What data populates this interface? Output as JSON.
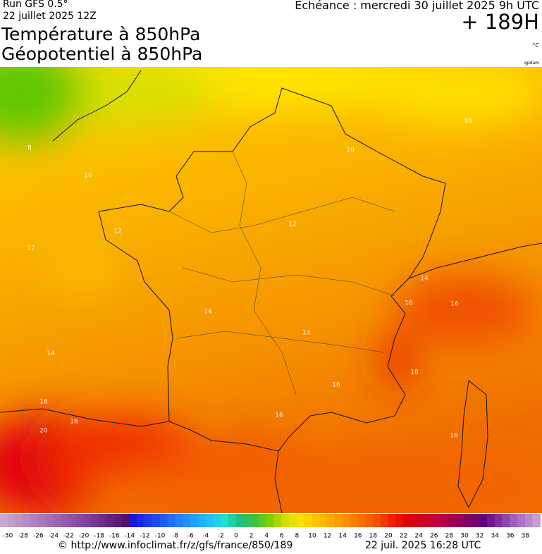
{
  "header": {
    "run": "Run GFS 0.5°",
    "run_date": "22 juillet 2025 12Z",
    "title_1": "Température à 850hPa",
    "title_2": "Géopotentiel à 850hPa",
    "valid": "Echéance : mercredi 30 juillet 2025 9h UTC",
    "lead": "+ 189H",
    "unit": "°C",
    "credit": "gpdam"
  },
  "map": {
    "contour_labels": [
      "8",
      "10",
      "10",
      "10",
      "12",
      "12",
      "12",
      "14",
      "14",
      "14",
      "14",
      "16",
      "16",
      "16",
      "16",
      "16",
      "16",
      "18",
      "16",
      "20"
    ]
  },
  "scale": {
    "labels": [
      -30,
      -28,
      -26,
      -24,
      -22,
      -20,
      -18,
      -16,
      -14,
      -12,
      -10,
      -8,
      -6,
      -4,
      -2,
      0,
      2,
      4,
      6,
      8,
      10,
      12,
      14,
      16,
      18,
      20,
      22,
      24,
      26,
      28,
      30,
      32,
      34,
      36,
      38
    ]
  },
  "footer": {
    "source": "© http://www.infoclimat.fr/z/gfs/france/850/189",
    "generated": "22 juil. 2025 16:28 UTC"
  }
}
